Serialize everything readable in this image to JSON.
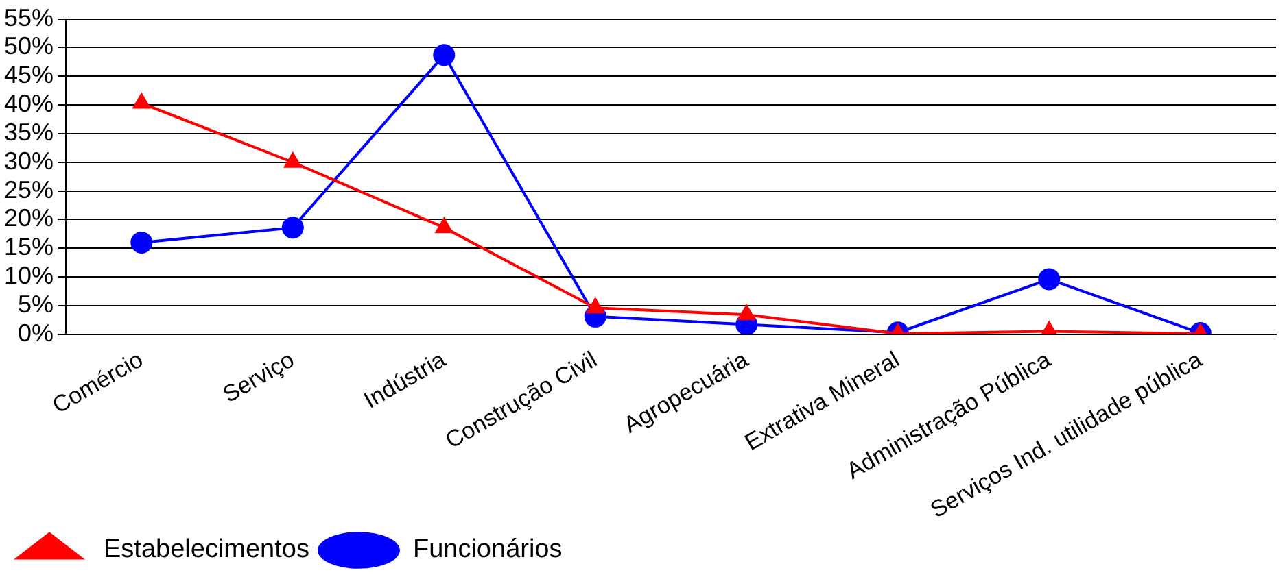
{
  "chart_data": {
    "type": "line",
    "categories": [
      "Comércio",
      "Serviço",
      "Indústria",
      "Construção Civil",
      "Agropecuária",
      "Extrativa Mineral",
      "Administração Pública",
      "Serviços Ind. utilidade pública"
    ],
    "series": [
      {
        "name": "Estabelecimentos",
        "color": "#ff0000",
        "marker": "triangle",
        "values": [
          40.3,
          30.0,
          18.6,
          4.6,
          3.4,
          0.1,
          0.5,
          0.1
        ]
      },
      {
        "name": "Funcionários",
        "color": "#0000ff",
        "marker": "circle",
        "values": [
          16.0,
          18.6,
          48.7,
          3.1,
          1.7,
          0.3,
          9.6,
          0.2
        ]
      }
    ],
    "ylim": [
      0,
      55
    ],
    "yticks": [
      {
        "value": 0,
        "label": "0%"
      },
      {
        "value": 5,
        "label": "5%"
      },
      {
        "value": 10,
        "label": "10%"
      },
      {
        "value": 15,
        "label": "15%"
      },
      {
        "value": 20,
        "label": "20%"
      },
      {
        "value": 25,
        "label": "25%"
      },
      {
        "value": 30,
        "label": "30%"
      },
      {
        "value": 35,
        "label": "35%"
      },
      {
        "value": 40,
        "label": "40%"
      },
      {
        "value": 45,
        "label": "45%"
      },
      {
        "value": 50,
        "label": "50%"
      },
      {
        "value": 55,
        "label": "55%"
      }
    ],
    "grid": "y",
    "legend": "bottom left",
    "line_style": "solid"
  }
}
